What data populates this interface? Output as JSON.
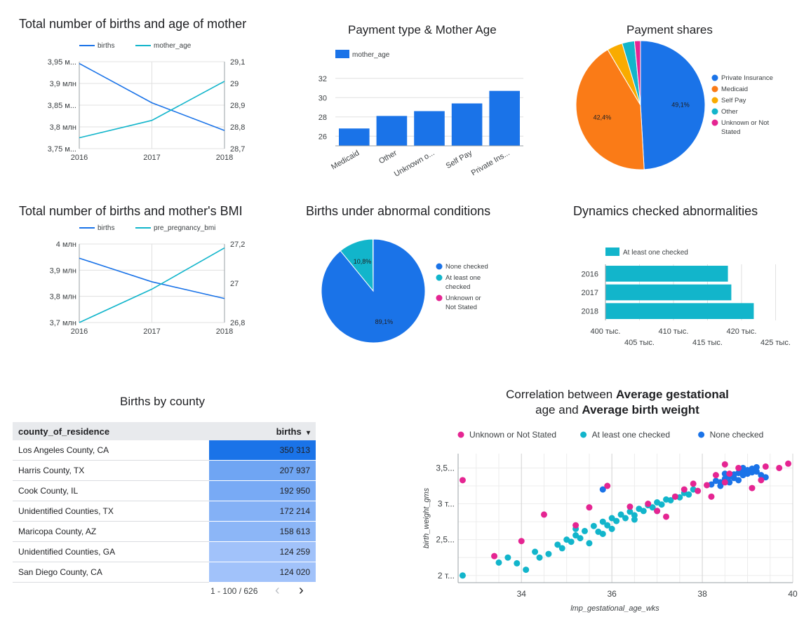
{
  "titles": {
    "births_mother_age": "Total number of births and age of mother",
    "payment_age": "Payment type & Mother Age",
    "payment_shares": "Payment shares",
    "births_bmi": "Total number of births and mother's BMI",
    "abnormal": "Births under abnormal conditions",
    "dynamics": "Dynamics checked abnormalities",
    "county": "Births by county",
    "scatter_pre": "Correlation between ",
    "scatter_b1": "Average gestational",
    "scatter_mid": "age",
    "scatter_and": " and ",
    "scatter_b2": "Average birth weight"
  },
  "chart_data": [
    {
      "id": "births_mother_age",
      "type": "line",
      "x": [
        "2016",
        "2017",
        "2018"
      ],
      "series": [
        {
          "name": "births",
          "axis": "left",
          "values": [
            3945875,
            3855500,
            3791712
          ],
          "color": "#1a73e8"
        },
        {
          "name": "mother_age",
          "axis": "right",
          "values": [
            28.75,
            28.83,
            29.01
          ],
          "color": "#12b5cb"
        }
      ],
      "left_ticks": [
        "3,95 м...",
        "3,9 млн",
        "3,85 м...",
        "3,8 млн",
        "3,75 м..."
      ],
      "left_range": [
        3750000,
        3950000
      ],
      "right_ticks": [
        "29,1",
        "29",
        "28,9",
        "28,8",
        "28,7"
      ],
      "right_range": [
        28.7,
        29.1
      ],
      "legend": "top"
    },
    {
      "id": "payment_age",
      "type": "bar",
      "categories": [
        "Medicaid",
        "Other",
        "Unknown o...",
        "Self Pay",
        "Private Ins..."
      ],
      "series": [
        {
          "name": "mother_age",
          "values": [
            26.8,
            28.1,
            28.6,
            29.4,
            30.7
          ],
          "color": "#1a73e8"
        }
      ],
      "y_ticks": [
        "32",
        "30",
        "28",
        "26"
      ],
      "ylim": [
        25,
        33
      ],
      "legend": "top-left"
    },
    {
      "id": "payment_shares",
      "type": "pie",
      "slices": [
        {
          "label": "Private Insurance",
          "value": 49.1,
          "text": "49,1%",
          "color": "#1a73e8"
        },
        {
          "label": "Medicaid",
          "value": 42.4,
          "text": "42,4%",
          "color": "#fa7b17"
        },
        {
          "label": "Self Pay",
          "value": 3.9,
          "text": "",
          "color": "#f9ab00"
        },
        {
          "label": "Other",
          "value": 3.1,
          "text": "",
          "color": "#12b5cb"
        },
        {
          "label": "Unknown or Not Stated",
          "value": 1.5,
          "text": "",
          "color": "#e52592"
        }
      ],
      "legend": "right"
    },
    {
      "id": "births_bmi",
      "type": "line",
      "x": [
        "2016",
        "2017",
        "2018"
      ],
      "series": [
        {
          "name": "births",
          "axis": "left",
          "values": [
            3945875,
            3855500,
            3791712
          ],
          "color": "#1a73e8"
        },
        {
          "name": "pre_pregnancy_bmi",
          "axis": "right",
          "values": [
            26.8,
            26.97,
            27.18
          ],
          "color": "#12b5cb"
        }
      ],
      "left_ticks": [
        "4 млн",
        "3,9 млн",
        "3,8 млн",
        "3,7 млн"
      ],
      "left_range": [
        3700000,
        4000000
      ],
      "right_ticks": [
        "27,2",
        "27",
        "26,8"
      ],
      "right_range": [
        26.8,
        27.2
      ],
      "legend": "top"
    },
    {
      "id": "abnormal",
      "type": "pie",
      "slices": [
        {
          "label": "None checked",
          "value": 89.1,
          "text": "89,1%",
          "color": "#1a73e8"
        },
        {
          "label": "At least one checked",
          "value": 10.8,
          "text": "10,8%",
          "color": "#12b5cb"
        },
        {
          "label": "Unknown or Not Stated",
          "value": 0.1,
          "text": "",
          "color": "#e52592"
        }
      ],
      "legend": "right"
    },
    {
      "id": "dynamics",
      "type": "bar",
      "orientation": "horizontal",
      "categories": [
        "2016",
        "2017",
        "2018"
      ],
      "series": [
        {
          "name": "At least one checked",
          "values": [
            418000,
            418500,
            421800
          ],
          "color": "#12b5cb"
        }
      ],
      "x_ticks": [
        "400 тыс.",
        "405 тыс.",
        "410 тыс.",
        "415 тыс.",
        "420 тыс.",
        "425 тыс."
      ],
      "xlim": [
        400000,
        426500
      ],
      "legend": "top-left"
    },
    {
      "id": "county",
      "type": "table",
      "columns": [
        "county_of_residence",
        "births"
      ],
      "sort_indicator": "▾",
      "rows": [
        {
          "county": "Los Angeles County, CA",
          "births": "350 313",
          "value": 350313
        },
        {
          "county": "Harris County, TX",
          "births": "207 937",
          "value": 207937
        },
        {
          "county": "Cook County, IL",
          "births": "192 950",
          "value": 192950
        },
        {
          "county": "Unidentified Counties, TX",
          "births": "172 214",
          "value": 172214
        },
        {
          "county": "Maricopa County, AZ",
          "births": "158 613",
          "value": 158613
        },
        {
          "county": "Unidentified Counties, GA",
          "births": "124 259",
          "value": 124259
        },
        {
          "county": "San Diego County, CA",
          "births": "124 020",
          "value": 124020
        }
      ],
      "pagination": "1 - 100 / 626",
      "prev_glyph": "‹",
      "next_glyph": "›"
    },
    {
      "id": "scatter",
      "type": "scatter",
      "xlabel": "lmp_gestational_age_wks",
      "ylabel": "birth_weight_gms",
      "xlim": [
        32.6,
        40
      ],
      "ylim": [
        1900,
        3700
      ],
      "x_ticks": [
        "34",
        "36",
        "38",
        "40"
      ],
      "x_tick_values": [
        34,
        36,
        38,
        40
      ],
      "y_ticks": [
        "3,5...",
        "3 т...",
        "2,5...",
        "2 т..."
      ],
      "y_tick_values": [
        3500,
        3000,
        2500,
        2000
      ],
      "legend": "top",
      "series": [
        {
          "name": "Unknown or Not Stated",
          "color": "#e52592",
          "points": [
            [
              32.7,
              3330
            ],
            [
              33.4,
              2270
            ],
            [
              34.0,
              2480
            ],
            [
              34.5,
              2850
            ],
            [
              35.2,
              2700
            ],
            [
              35.5,
              2950
            ],
            [
              35.9,
              3250
            ],
            [
              36.4,
              2960
            ],
            [
              37.0,
              2900
            ],
            [
              37.2,
              2820
            ],
            [
              37.4,
              3100
            ],
            [
              37.6,
              3200
            ],
            [
              37.8,
              3280
            ],
            [
              37.9,
              3180
            ],
            [
              38.1,
              3260
            ],
            [
              38.3,
              3400
            ],
            [
              38.5,
              3300
            ],
            [
              38.6,
              3420
            ],
            [
              38.8,
              3500
            ],
            [
              38.5,
              3550
            ],
            [
              39.1,
              3220
            ],
            [
              39.3,
              3330
            ],
            [
              39.4,
              3520
            ],
            [
              39.7,
              3500
            ],
            [
              39.9,
              3560
            ],
            [
              38.2,
              3100
            ],
            [
              36.8,
              3000
            ]
          ]
        },
        {
          "name": "At least one checked",
          "color": "#12b5cb",
          "points": [
            [
              32.7,
              2000
            ],
            [
              33.5,
              2180
            ],
            [
              33.7,
              2250
            ],
            [
              33.9,
              2170
            ],
            [
              34.1,
              2080
            ],
            [
              34.3,
              2330
            ],
            [
              34.4,
              2250
            ],
            [
              34.6,
              2300
            ],
            [
              34.8,
              2430
            ],
            [
              35.0,
              2500
            ],
            [
              35.2,
              2560
            ],
            [
              35.4,
              2620
            ],
            [
              35.6,
              2690
            ],
            [
              35.8,
              2750
            ],
            [
              36.0,
              2800
            ],
            [
              36.2,
              2850
            ],
            [
              36.4,
              2890
            ],
            [
              36.6,
              2930
            ],
            [
              36.8,
              2980
            ],
            [
              37.0,
              3020
            ],
            [
              37.2,
              3060
            ],
            [
              37.4,
              3100
            ],
            [
              37.6,
              3150
            ],
            [
              37.8,
              3200
            ],
            [
              34.9,
              2380
            ],
            [
              35.1,
              2470
            ],
            [
              35.3,
              2520
            ],
            [
              35.7,
              2610
            ],
            [
              35.9,
              2700
            ],
            [
              36.1,
              2760
            ],
            [
              36.3,
              2800
            ],
            [
              36.5,
              2840
            ],
            [
              36.7,
              2900
            ],
            [
              36.9,
              2950
            ],
            [
              37.1,
              2990
            ],
            [
              37.3,
              3050
            ],
            [
              37.5,
              3090
            ],
            [
              37.7,
              3130
            ],
            [
              35.5,
              2450
            ],
            [
              36.0,
              2650
            ],
            [
              36.5,
              2780
            ],
            [
              37.0,
              2900
            ],
            [
              35.2,
              2650
            ],
            [
              35.8,
              2580
            ]
          ]
        },
        {
          "name": "None checked",
          "color": "#1a73e8",
          "points": [
            [
              38.2,
              3270
            ],
            [
              38.4,
              3300
            ],
            [
              38.5,
              3350
            ],
            [
              38.6,
              3380
            ],
            [
              38.7,
              3410
            ],
            [
              38.8,
              3430
            ],
            [
              38.9,
              3450
            ],
            [
              39.0,
              3470
            ],
            [
              39.1,
              3490
            ],
            [
              39.2,
              3510
            ],
            [
              38.3,
              3320
            ],
            [
              38.7,
              3360
            ],
            [
              38.9,
              3400
            ],
            [
              39.0,
              3420
            ],
            [
              39.1,
              3440
            ],
            [
              38.6,
              3300
            ],
            [
              38.8,
              3330
            ],
            [
              39.2,
              3450
            ],
            [
              38.4,
              3250
            ],
            [
              39.3,
              3400
            ],
            [
              35.8,
              3200
            ],
            [
              39.4,
              3370
            ],
            [
              38.5,
              3420
            ],
            [
              38.9,
              3500
            ]
          ]
        }
      ]
    }
  ]
}
